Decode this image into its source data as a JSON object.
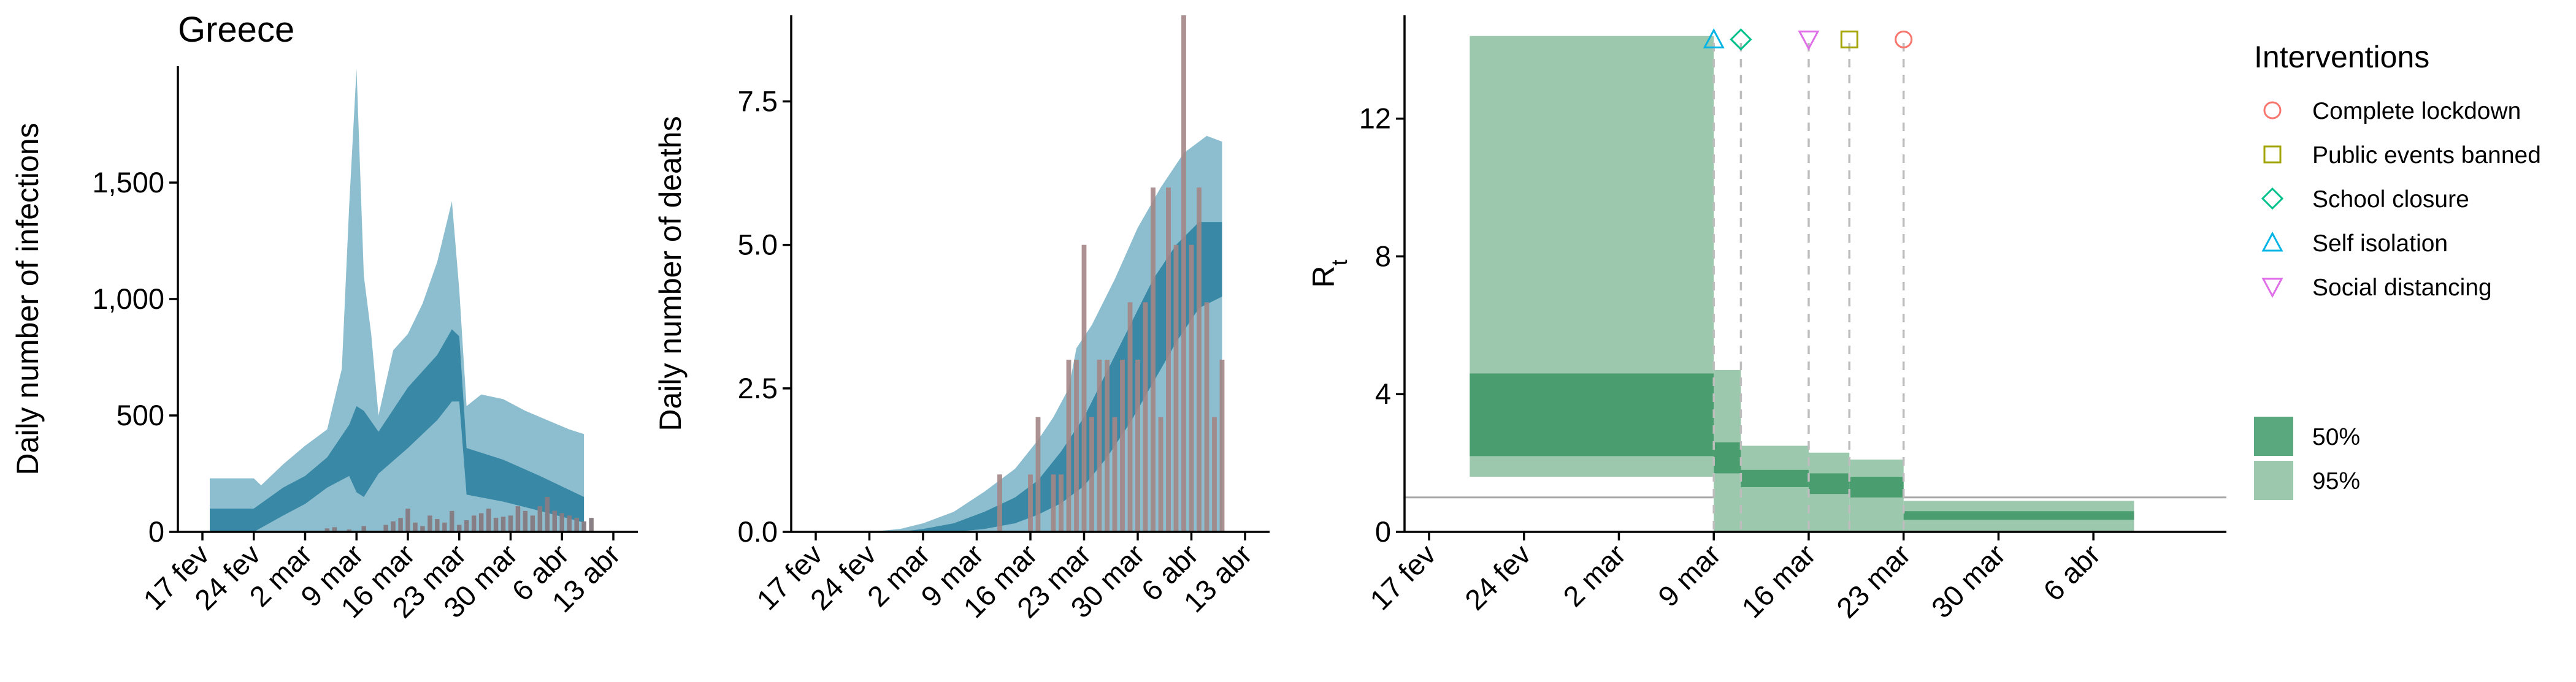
{
  "chart_data": [
    {
      "type": "area",
      "title": "Greece",
      "ylabel": "Daily number of infections",
      "xlabel": "",
      "x_tick_labels": [
        "17 fev",
        "24 fev",
        "2 mar",
        "9 mar",
        "16 mar",
        "23 mar",
        "30 mar",
        "6 abr",
        "13 abr"
      ],
      "y_tick_labels": [
        "0",
        "500",
        "1,000",
        "1,500"
      ],
      "y_ticks": [
        0,
        500,
        1000,
        1500
      ],
      "ylim": [
        0,
        2000
      ],
      "x_start": "2020-02-17",
      "series": [
        {
          "kind": "band95",
          "color": "#8dbecf",
          "x": [
            "2020-02-18",
            "2020-02-21",
            "2020-02-24",
            "2020-02-25",
            "2020-02-28",
            "2020-03-02",
            "2020-03-05",
            "2020-03-07",
            "2020-03-08",
            "2020-03-09",
            "2020-03-10",
            "2020-03-11",
            "2020-03-12",
            "2020-03-14",
            "2020-03-16",
            "2020-03-18",
            "2020-03-20",
            "2020-03-22",
            "2020-03-23",
            "2020-03-24",
            "2020-03-26",
            "2020-03-29",
            "2020-04-01",
            "2020-04-04",
            "2020-04-07",
            "2020-04-09"
          ],
          "upper": [
            230,
            230,
            230,
            200,
            290,
            370,
            440,
            700,
            1400,
            1990,
            1100,
            850,
            500,
            780,
            850,
            980,
            1160,
            1420,
            1040,
            540,
            590,
            570,
            520,
            480,
            440,
            420
          ],
          "lower": [
            0,
            0,
            0,
            0,
            0,
            0,
            0,
            0,
            0,
            0,
            0,
            0,
            0,
            0,
            0,
            0,
            0,
            0,
            0,
            0,
            0,
            0,
            0,
            0,
            0,
            0
          ]
        },
        {
          "kind": "band50",
          "color": "#3888a6",
          "x": [
            "2020-02-18",
            "2020-02-21",
            "2020-02-24",
            "2020-02-28",
            "2020-03-02",
            "2020-03-05",
            "2020-03-08",
            "2020-03-09",
            "2020-03-10",
            "2020-03-12",
            "2020-03-16",
            "2020-03-20",
            "2020-03-22",
            "2020-03-23",
            "2020-03-24",
            "2020-03-29",
            "2020-04-03",
            "2020-04-09"
          ],
          "upper": [
            100,
            100,
            100,
            190,
            240,
            320,
            460,
            540,
            520,
            430,
            620,
            760,
            870,
            840,
            360,
            310,
            240,
            150
          ],
          "lower": [
            0,
            0,
            0,
            70,
            120,
            190,
            240,
            170,
            150,
            250,
            360,
            480,
            560,
            560,
            160,
            130,
            90,
            40
          ]
        },
        {
          "kind": "bars",
          "name": "reported_cases",
          "color": "#e4938a",
          "x": [
            "2020-03-05",
            "2020-03-06",
            "2020-03-08",
            "2020-03-10",
            "2020-03-13",
            "2020-03-14",
            "2020-03-15",
            "2020-03-16",
            "2020-03-17",
            "2020-03-18",
            "2020-03-19",
            "2020-03-20",
            "2020-03-21",
            "2020-03-22",
            "2020-03-23",
            "2020-03-24",
            "2020-03-25",
            "2020-03-26",
            "2020-03-27",
            "2020-03-28",
            "2020-03-29",
            "2020-03-30",
            "2020-03-31",
            "2020-04-01",
            "2020-04-02",
            "2020-04-03",
            "2020-04-04",
            "2020-04-05",
            "2020-04-06",
            "2020-04-07",
            "2020-04-08",
            "2020-04-09",
            "2020-04-10"
          ],
          "values": [
            15,
            20,
            10,
            25,
            30,
            45,
            60,
            100,
            40,
            25,
            70,
            55,
            40,
            90,
            30,
            50,
            70,
            80,
            100,
            60,
            65,
            70,
            110,
            90,
            70,
            110,
            150,
            90,
            80,
            70,
            60,
            45,
            60
          ]
        }
      ]
    },
    {
      "type": "area",
      "title": "",
      "ylabel": "Daily number of deaths",
      "xlabel": "",
      "x_tick_labels": [
        "17 fev",
        "24 fev",
        "2 mar",
        "9 mar",
        "16 mar",
        "23 mar",
        "30 mar",
        "6 abr",
        "13 abr"
      ],
      "y_tick_labels": [
        "0.0",
        "2.5",
        "5.0",
        "7.5"
      ],
      "y_ticks": [
        0,
        2.5,
        5,
        7.5
      ],
      "ylim": [
        0,
        9
      ],
      "x_start": "2020-02-17",
      "series": [
        {
          "kind": "band95",
          "color": "#8dbecf",
          "x": [
            "2020-02-18",
            "2020-02-24",
            "2020-02-28",
            "2020-03-02",
            "2020-03-06",
            "2020-03-10",
            "2020-03-14",
            "2020-03-17",
            "2020-03-19",
            "2020-03-21",
            "2020-03-22",
            "2020-03-24",
            "2020-03-27",
            "2020-03-30",
            "2020-04-02",
            "2020-04-05",
            "2020-04-08",
            "2020-04-10"
          ],
          "upper": [
            0,
            0,
            0.05,
            0.15,
            0.35,
            0.7,
            1.1,
            1.6,
            2.0,
            2.5,
            3.2,
            3.6,
            4.4,
            5.3,
            6.0,
            6.6,
            6.9,
            6.8
          ],
          "lower": [
            0,
            0,
            0,
            0,
            0,
            0,
            0,
            0,
            0,
            0,
            0,
            0,
            0,
            0,
            0,
            0,
            0,
            0
          ]
        },
        {
          "kind": "band50",
          "color": "#3888a6",
          "x": [
            "2020-02-18",
            "2020-02-24",
            "2020-02-28",
            "2020-03-02",
            "2020-03-06",
            "2020-03-10",
            "2020-03-14",
            "2020-03-17",
            "2020-03-20",
            "2020-03-23",
            "2020-03-26",
            "2020-03-29",
            "2020-04-01",
            "2020-04-04",
            "2020-04-07",
            "2020-04-10"
          ],
          "upper": [
            0,
            0,
            0,
            0.05,
            0.15,
            0.35,
            0.6,
            0.9,
            1.4,
            2.0,
            2.8,
            3.6,
            4.4,
            5.0,
            5.4,
            5.4
          ],
          "lower": [
            0,
            0,
            0,
            0,
            0,
            0.05,
            0.15,
            0.3,
            0.5,
            0.8,
            1.3,
            1.9,
            2.6,
            3.3,
            3.9,
            4.1
          ]
        },
        {
          "kind": "bars",
          "name": "reported_deaths",
          "color": "#c8928a",
          "x": [
            "2020-03-12",
            "2020-03-16",
            "2020-03-17",
            "2020-03-19",
            "2020-03-20",
            "2020-03-21",
            "2020-03-22",
            "2020-03-23",
            "2020-03-24",
            "2020-03-25",
            "2020-03-26",
            "2020-03-27",
            "2020-03-28",
            "2020-03-29",
            "2020-03-30",
            "2020-03-31",
            "2020-04-01",
            "2020-04-02",
            "2020-04-03",
            "2020-04-04",
            "2020-04-05",
            "2020-04-06",
            "2020-04-07",
            "2020-04-08",
            "2020-04-09",
            "2020-04-10"
          ],
          "values": [
            1,
            1,
            2,
            1,
            1,
            3,
            3,
            5,
            2,
            3,
            3,
            2,
            3,
            4,
            3,
            4,
            6,
            2,
            6,
            5,
            9,
            5,
            6,
            4,
            2,
            3
          ]
        }
      ]
    },
    {
      "type": "area",
      "title": "",
      "ylabel": "R",
      "ylabel_subscript": "t",
      "xlabel": "",
      "x_tick_labels": [
        "17 fev",
        "24 fev",
        "2 mar",
        "9 mar",
        "16 mar",
        "23 mar",
        "30 mar",
        "6 abr"
      ],
      "y_tick_labels": [
        "0",
        "4",
        "8",
        "12"
      ],
      "y_ticks": [
        0,
        4,
        8,
        12
      ],
      "ylim": [
        0,
        15
      ],
      "x_start": "2020-02-17",
      "reference_line_y": 1,
      "steps": [
        {
          "from": "2020-02-20",
          "to": "2020-03-09",
          "lo95": 1.6,
          "hi95": 14.4,
          "lo50": 2.2,
          "hi50": 4.6
        },
        {
          "from": "2020-03-09",
          "to": "2020-03-11",
          "lo95": 0.0,
          "hi95": 4.7,
          "lo50": 1.7,
          "hi50": 2.6
        },
        {
          "from": "2020-03-11",
          "to": "2020-03-16",
          "lo95": 0.0,
          "hi95": 2.5,
          "lo50": 1.3,
          "hi50": 1.8
        },
        {
          "from": "2020-03-16",
          "to": "2020-03-19",
          "lo95": 0.0,
          "hi95": 2.3,
          "lo50": 1.1,
          "hi50": 1.7
        },
        {
          "from": "2020-03-19",
          "to": "2020-03-23",
          "lo95": 0.0,
          "hi95": 2.1,
          "lo50": 1.0,
          "hi50": 1.6
        },
        {
          "from": "2020-03-23",
          "to": "2020-04-09",
          "lo95": 0.0,
          "hi95": 0.9,
          "lo50": 0.35,
          "hi50": 0.6
        }
      ],
      "interventions": [
        {
          "name": "Self isolation",
          "date": "2020-03-09",
          "symbol": "triangle-up",
          "color": "#00b4e6"
        },
        {
          "name": "School closure",
          "date": "2020-03-11",
          "symbol": "diamond",
          "color": "#00c08b"
        },
        {
          "name": "Social distancing",
          "date": "2020-03-16",
          "symbol": "triangle-down",
          "color": "#e06ee8"
        },
        {
          "name": "Public events banned",
          "date": "2020-03-19",
          "symbol": "square",
          "color": "#a3a500"
        },
        {
          "name": "Complete lockdown",
          "date": "2020-03-23",
          "symbol": "circle",
          "color": "#f8766d"
        }
      ]
    }
  ],
  "legend": {
    "title": "Interventions",
    "items": [
      {
        "label": "Complete lockdown",
        "symbol": "circle",
        "color": "#f8766d"
      },
      {
        "label": "Public events banned",
        "symbol": "square",
        "color": "#a3a500"
      },
      {
        "label": "School closure",
        "symbol": "diamond",
        "color": "#00c08b"
      },
      {
        "label": "Self isolation",
        "symbol": "triangle-up",
        "color": "#00b4e6"
      },
      {
        "label": "Social distancing",
        "symbol": "triangle-down",
        "color": "#e06ee8"
      }
    ],
    "intervals": [
      {
        "label": "50%",
        "color": "#5aa87d"
      },
      {
        "label": "95%",
        "color": "#9cc9ad"
      }
    ]
  },
  "colors": {
    "infection_band95": "#8dbecf",
    "infection_band50": "#3888a6",
    "rt_band95": "#9cc9ad",
    "rt_band50": "#4a9d6e",
    "bar_observed": "#6b7580"
  }
}
